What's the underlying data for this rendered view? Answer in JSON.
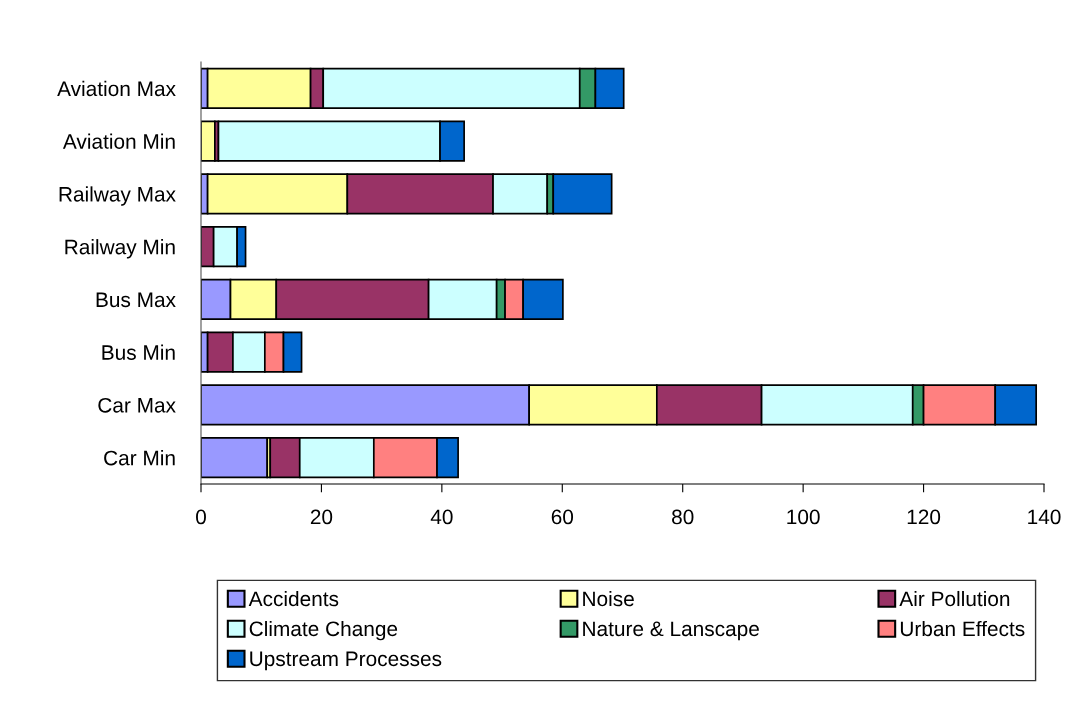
{
  "chart_data": {
    "type": "bar",
    "orientation": "horizontal",
    "stacked": true,
    "categories": [
      "Aviation Max",
      "Aviation Min",
      "Railway Max",
      "Railway Min",
      "Bus Max",
      "Bus Min",
      "Car Max",
      "Car Min"
    ],
    "series": [
      {
        "name": "Accidents",
        "color": "#9999ff",
        "values": [
          1.1,
          0,
          1.1,
          null,
          4.9,
          1.1,
          54.5,
          11.0
        ]
      },
      {
        "name": "Noise",
        "color": "#ffff99",
        "values": [
          17.1,
          2.3,
          23.2,
          0,
          7.6,
          0,
          21.2,
          0.5
        ]
      },
      {
        "name": "Air Pollution",
        "color": "#993366",
        "values": [
          2.1,
          0.6,
          24.2,
          2.1,
          25.3,
          4.2,
          17.4,
          4.9
        ]
      },
      {
        "name": "Climate Change",
        "color": "#ccffff",
        "values": [
          42.6,
          36.8,
          9.0,
          3.9,
          11.3,
          5.3,
          25.1,
          12.3
        ]
      },
      {
        "name": "Nature & Lanscape",
        "color": "#339966",
        "values": [
          2.6,
          0,
          1.0,
          0,
          1.4,
          0,
          1.8,
          0
        ]
      },
      {
        "name": "Urban Effects",
        "color": "#ff8080",
        "values": [
          0,
          0,
          0,
          0,
          3.0,
          3.1,
          11.9,
          10.5
        ]
      },
      {
        "name": "Upstream Processes",
        "color": "#0066cc",
        "values": [
          4.7,
          4.0,
          9.7,
          1.4,
          6.6,
          3.0,
          6.8,
          3.5
        ]
      }
    ],
    "xlim": [
      0,
      140
    ],
    "xticks": [
      0,
      20,
      40,
      60,
      80,
      100,
      120,
      140
    ],
    "grid": false,
    "legend": "bottom"
  }
}
